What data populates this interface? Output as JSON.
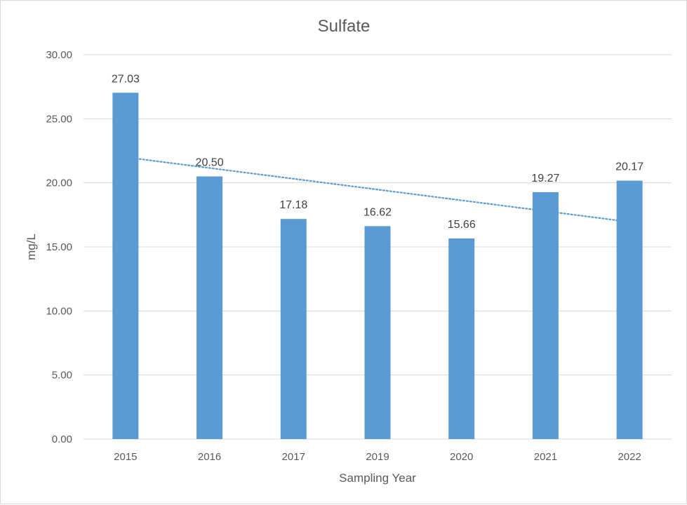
{
  "chart_data": {
    "type": "bar",
    "title": "Sulfate",
    "xlabel": "Sampling Year",
    "ylabel": "mg/L",
    "categories": [
      "2015",
      "2016",
      "2017",
      "2019",
      "2020",
      "2021",
      "2022"
    ],
    "values": [
      27.03,
      20.5,
      17.18,
      16.62,
      15.66,
      19.27,
      20.17
    ],
    "data_labels": [
      "27.03",
      "20.50",
      "17.18",
      "16.62",
      "15.66",
      "19.27",
      "20.17"
    ],
    "ylim": [
      0,
      30
    ],
    "yticks": [
      "0.00",
      "5.00",
      "10.00",
      "15.00",
      "20.00",
      "25.00",
      "30.00"
    ],
    "trendline": {
      "type": "linear",
      "style": "dotted",
      "start": 22.0,
      "end": 16.95
    },
    "grid": true,
    "legend": "none",
    "colors": {
      "bar": "#5b9bd5",
      "trendline": "#5b9bd5",
      "grid": "#d9d9d9",
      "text": "#595959"
    }
  }
}
